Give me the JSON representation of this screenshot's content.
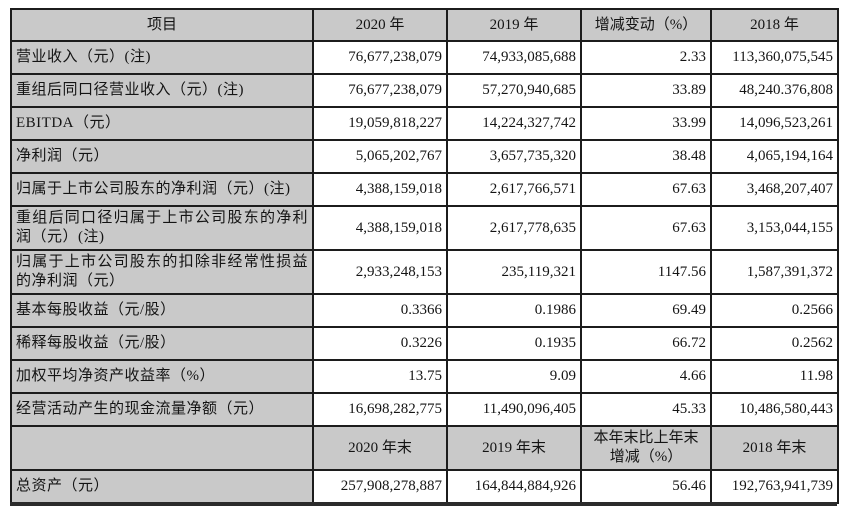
{
  "colors": {
    "header_bg": "#c9c9c9",
    "border": "#1c1c1c",
    "text": "#141414",
    "page_bg": "#ffffff"
  },
  "table": {
    "header_row1": [
      "项目",
      "2020 年",
      "2019 年",
      "增减变动（%）",
      "2018 年"
    ],
    "rows_section1": [
      {
        "label": "营业收入（元）(注)",
        "values": [
          "76,677,238,079",
          "74,933,085,688",
          "2.33",
          "113,360,075,545"
        ]
      },
      {
        "label": "重组后同口径营业收入（元）(注)",
        "values": [
          "76,677,238,079",
          "57,270,940,685",
          "33.89",
          "48,240.376,808"
        ]
      },
      {
        "label": "EBITDA（元）",
        "values": [
          "19,059,818,227",
          "14,224,327,742",
          "33.99",
          "14,096,523,261"
        ]
      },
      {
        "label": "净利润（元）",
        "values": [
          "5,065,202,767",
          "3,657,735,320",
          "38.48",
          "4,065,194,164"
        ]
      },
      {
        "label": "归属于上市公司股东的净利润（元）(注)",
        "values": [
          "4,388,159,018",
          "2,617,766,571",
          "67.63",
          "3,468,207,407"
        ]
      },
      {
        "label": "重组后同口径归属于上市公司股东的净利润（元）(注)",
        "values": [
          "4,388,159,018",
          "2,617,778,635",
          "67.63",
          "3,153,044,155"
        ]
      },
      {
        "label": "归属于上市公司股东的扣除非经常性损益的净利润（元）",
        "values": [
          "2,933,248,153",
          "235,119,321",
          "1147.56",
          "1,587,391,372"
        ]
      },
      {
        "label": "基本每股收益（元/股）",
        "values": [
          "0.3366",
          "0.1986",
          "69.49",
          "0.2566"
        ]
      },
      {
        "label": "稀释每股收益（元/股）",
        "values": [
          "0.3226",
          "0.1935",
          "66.72",
          "0.2562"
        ]
      },
      {
        "label": "加权平均净资产收益率（%）",
        "values": [
          "13.75",
          "9.09",
          "4.66",
          "11.98"
        ]
      },
      {
        "label": "经营活动产生的现金流量净额（元）",
        "values": [
          "16,698,282,775",
          "11,490,096,405",
          "45.33",
          "10,486,580,443"
        ]
      }
    ],
    "header_row2": [
      "",
      "2020 年末",
      "2019 年末",
      "本年末比上年末\n增减（%）",
      "2018 年末"
    ],
    "rows_section2": [
      {
        "label": "总资产（元）",
        "values": [
          "257,908,278,887",
          "164,844,884,926",
          "56.46",
          "192,763,941,739"
        ]
      }
    ]
  }
}
